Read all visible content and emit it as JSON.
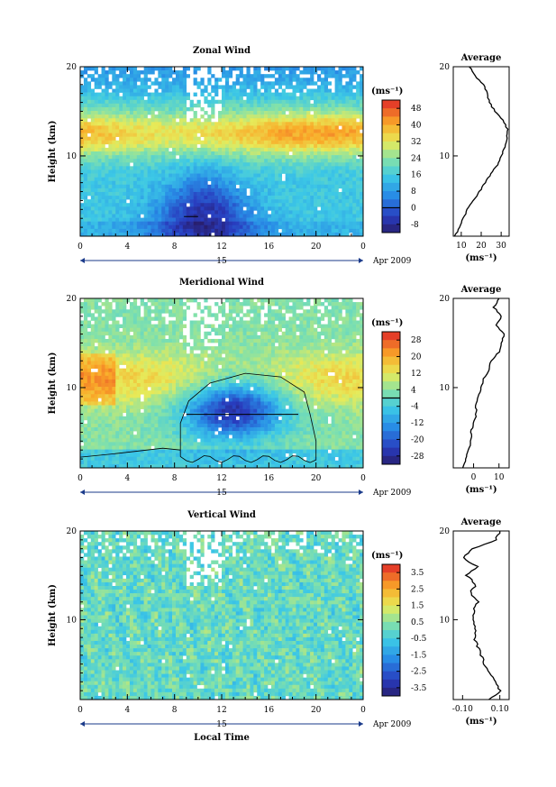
{
  "chart_data": [
    {
      "type": "heatmap",
      "title": "Zonal Wind",
      "ylabel": "Height (km)",
      "xticks": [
        "0",
        "4",
        "8",
        "12",
        "16",
        "20",
        "0"
      ],
      "yticks": [
        "10",
        "20"
      ],
      "xlim": [
        0,
        24
      ],
      "ylim": [
        1,
        20
      ],
      "date_day": "15",
      "date_label": "Apr 2009",
      "colorbar": {
        "unit": "(ms⁻¹)",
        "ticks": [
          "48",
          "40",
          "32",
          "24",
          "16",
          "8",
          "0",
          "-8"
        ],
        "range": [
          -12,
          52
        ],
        "zero_line": 0
      },
      "average": {
        "title": "Average",
        "xticks": [
          "10",
          "20",
          "30"
        ],
        "xlim": [
          6,
          34
        ],
        "unit": "(ms⁻¹)",
        "yticks": [
          "10",
          "20"
        ],
        "profile": {
          "height": [
            1,
            2,
            3,
            4,
            5,
            6,
            7,
            8,
            9,
            10,
            11,
            12,
            13,
            14,
            15,
            16,
            17,
            18,
            19,
            20
          ],
          "value": [
            7,
            9,
            11,
            13,
            16,
            19,
            22,
            25,
            28,
            30,
            32,
            33,
            33,
            31,
            27,
            24,
            23,
            21,
            17,
            14
          ]
        }
      }
    },
    {
      "type": "heatmap",
      "title": "Meridional Wind",
      "ylabel": "Height (km)",
      "xticks": [
        "0",
        "4",
        "8",
        "12",
        "16",
        "20",
        "0"
      ],
      "yticks": [
        "10",
        "20"
      ],
      "xlim": [
        0,
        24
      ],
      "ylim": [
        1,
        20
      ],
      "date_day": "15",
      "date_label": "Apr 2009",
      "colorbar": {
        "unit": "(ms⁻¹)",
        "ticks": [
          "28",
          "20",
          "12",
          "4",
          "-4",
          "-12",
          "-20",
          "-28"
        ],
        "range": [
          -32,
          32
        ],
        "zero_line": 0
      },
      "average": {
        "title": "Average",
        "xticks": [
          "0",
          "10"
        ],
        "xlim": [
          -8,
          14
        ],
        "unit": "(ms⁻¹)",
        "yticks": [
          "10",
          "20"
        ],
        "profile": {
          "height": [
            1,
            2,
            3,
            4,
            5,
            6,
            7,
            8,
            9,
            10,
            11,
            12,
            13,
            14,
            15,
            16,
            17,
            18,
            19,
            20
          ],
          "value": [
            -4,
            -3,
            -2,
            -1,
            -1,
            0,
            1,
            1,
            2,
            3,
            4,
            6,
            7,
            10,
            11,
            12,
            9,
            11,
            8,
            10
          ]
        }
      }
    },
    {
      "type": "heatmap",
      "title": "Vertical Wind",
      "ylabel": "Height (km)",
      "xlabel": "Local Time",
      "xticks": [
        "0",
        "4",
        "8",
        "12",
        "16",
        "20",
        "0"
      ],
      "yticks": [
        "10",
        "20"
      ],
      "xlim": [
        0,
        24
      ],
      "ylim": [
        1,
        20
      ],
      "date_day": "15",
      "date_label": "Apr 2009",
      "colorbar": {
        "unit": "(ms⁻¹)",
        "ticks": [
          "3.5",
          "2.5",
          "1.5",
          "0.5",
          "-0.5",
          "-1.5",
          "-2.5",
          "-3.5"
        ],
        "range": [
          -4,
          4
        ],
        "zero_line": null
      },
      "average": {
        "title": "Average",
        "xticks": [
          "-0.10",
          "0.10"
        ],
        "xlim": [
          -0.15,
          0.15
        ],
        "unit": "(ms⁻¹)",
        "yticks": [
          "10",
          "20"
        ],
        "profile": {
          "height": [
            1,
            2,
            3,
            4,
            5,
            6,
            7,
            8,
            9,
            10,
            11,
            12,
            13,
            14,
            15,
            16,
            17,
            18,
            19,
            20
          ],
          "value": [
            0.05,
            0.1,
            0.08,
            0.04,
            0.02,
            0.0,
            -0.02,
            -0.04,
            -0.03,
            -0.05,
            -0.04,
            -0.02,
            -0.06,
            -0.03,
            -0.08,
            -0.02,
            -0.1,
            -0.05,
            0.08,
            0.1
          ]
        }
      }
    }
  ]
}
